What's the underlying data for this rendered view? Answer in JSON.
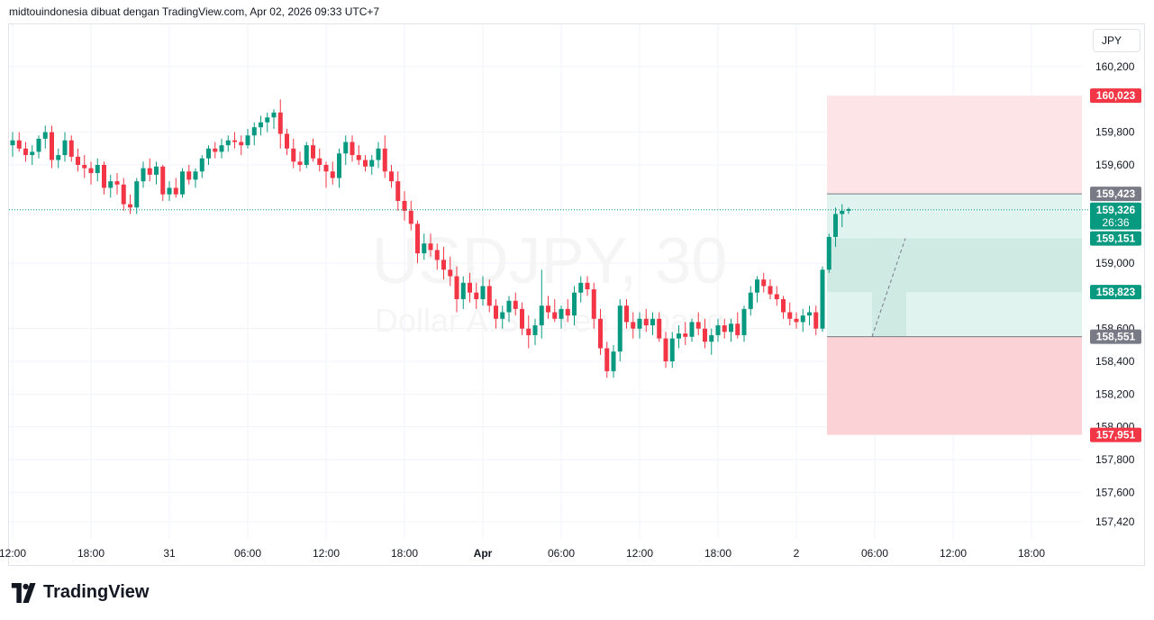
{
  "header": {
    "attribution": "midtouindonesia dibuat dengan TradingView.com, Apr 02, 2026 09:33 UTC+7"
  },
  "currency_button": "JPY",
  "watermark": {
    "symbol": "USDJPY, 30",
    "description": "Dollar A.S. / Yen Jepang"
  },
  "branding": {
    "name": "TradingView",
    "icon": "tradingview-logo-icon"
  },
  "colors": {
    "up": "#089981",
    "down": "#f23645",
    "target_zone": "#e0f3ef",
    "target_zone_dark": "#cfeae3",
    "stop_zone": "#fde4e6",
    "stop_zone_dark": "#fbd3d6",
    "grid": "#f0f3fa"
  },
  "chart_data": {
    "type": "candlestick",
    "title": "",
    "ylim": [
      157.35,
      160.4
    ],
    "y_ticks": [
      {
        "value": 160.2,
        "label": "160,200"
      },
      {
        "value": 159.8,
        "label": "159,800"
      },
      {
        "value": 159.6,
        "label": "159,600"
      },
      {
        "value": 159.0,
        "label": "159,000"
      },
      {
        "value": 158.6,
        "label": "158,600"
      },
      {
        "value": 158.4,
        "label": "158,400"
      },
      {
        "value": 158.2,
        "label": "158,200"
      },
      {
        "value": 158.0,
        "label": "158,000"
      },
      {
        "value": 157.8,
        "label": "157,800"
      },
      {
        "value": 157.6,
        "label": "157,600"
      },
      {
        "value": 157.42,
        "label": "157,420"
      }
    ],
    "x_ticks": [
      {
        "index": 0,
        "label": "12:00"
      },
      {
        "index": 12,
        "label": "18:00"
      },
      {
        "index": 24,
        "label": "31"
      },
      {
        "index": 36,
        "label": "06:00"
      },
      {
        "index": 48,
        "label": "12:00"
      },
      {
        "index": 60,
        "label": "18:00"
      },
      {
        "index": 72,
        "label": "Apr"
      },
      {
        "index": 84,
        "label": "06:00"
      },
      {
        "index": 96,
        "label": "12:00"
      },
      {
        "index": 108,
        "label": "18:00"
      },
      {
        "index": 120,
        "label": "2"
      },
      {
        "index": 132,
        "label": "06:00"
      },
      {
        "index": 144,
        "label": "12:00"
      },
      {
        "index": 156,
        "label": "18:00"
      }
    ],
    "candles": [
      [
        159.72,
        159.8,
        159.65,
        159.75
      ],
      [
        159.75,
        159.8,
        159.68,
        159.7
      ],
      [
        159.7,
        159.74,
        159.62,
        159.66
      ],
      [
        159.66,
        159.72,
        159.6,
        159.68
      ],
      [
        159.68,
        159.78,
        159.64,
        159.76
      ],
      [
        159.76,
        159.84,
        159.7,
        159.8
      ],
      [
        159.8,
        159.84,
        159.58,
        159.63
      ],
      [
        159.63,
        159.7,
        159.58,
        159.66
      ],
      [
        159.66,
        159.8,
        159.62,
        159.75
      ],
      [
        159.75,
        159.78,
        159.62,
        159.65
      ],
      [
        159.65,
        159.7,
        159.56,
        159.6
      ],
      [
        159.6,
        159.66,
        159.52,
        159.58
      ],
      [
        159.58,
        159.62,
        159.48,
        159.55
      ],
      [
        159.55,
        159.64,
        159.5,
        159.6
      ],
      [
        159.6,
        159.62,
        159.42,
        159.46
      ],
      [
        159.46,
        159.54,
        159.4,
        159.5
      ],
      [
        159.5,
        159.55,
        159.42,
        159.48
      ],
      [
        159.48,
        159.52,
        159.32,
        159.36
      ],
      [
        159.36,
        159.42,
        159.3,
        159.34
      ],
      [
        159.34,
        159.52,
        159.3,
        159.5
      ],
      [
        159.5,
        159.62,
        159.46,
        159.58
      ],
      [
        159.58,
        159.64,
        159.5,
        159.54
      ],
      [
        159.54,
        159.62,
        159.48,
        159.59
      ],
      [
        159.59,
        159.6,
        159.38,
        159.42
      ],
      [
        159.42,
        159.5,
        159.38,
        159.46
      ],
      [
        159.46,
        159.52,
        159.4,
        159.42
      ],
      [
        159.42,
        159.58,
        159.4,
        159.56
      ],
      [
        159.56,
        159.6,
        159.48,
        159.51
      ],
      [
        159.51,
        159.58,
        159.46,
        159.56
      ],
      [
        159.56,
        159.66,
        159.52,
        159.64
      ],
      [
        159.64,
        159.72,
        159.6,
        159.7
      ],
      [
        159.7,
        159.74,
        159.64,
        159.68
      ],
      [
        159.68,
        159.76,
        159.64,
        159.72
      ],
      [
        159.72,
        159.78,
        159.68,
        159.75
      ],
      [
        159.75,
        159.8,
        159.7,
        159.74
      ],
      [
        159.74,
        159.78,
        159.66,
        159.72
      ],
      [
        159.72,
        159.82,
        159.7,
        159.78
      ],
      [
        159.78,
        159.86,
        159.72,
        159.83
      ],
      [
        159.83,
        159.9,
        159.78,
        159.86
      ],
      [
        159.86,
        159.92,
        159.8,
        159.89
      ],
      [
        159.89,
        159.94,
        159.82,
        159.92
      ],
      [
        159.92,
        160.0,
        159.7,
        159.79
      ],
      [
        159.79,
        159.82,
        159.66,
        159.7
      ],
      [
        159.7,
        159.76,
        159.58,
        159.62
      ],
      [
        159.62,
        159.68,
        159.56,
        159.6
      ],
      [
        159.6,
        159.74,
        159.58,
        159.72
      ],
      [
        159.72,
        159.76,
        159.62,
        159.64
      ],
      [
        159.64,
        159.7,
        159.56,
        159.6
      ],
      [
        159.6,
        159.62,
        159.46,
        159.56
      ],
      [
        159.56,
        159.62,
        159.48,
        159.52
      ],
      [
        159.52,
        159.7,
        159.46,
        159.67
      ],
      [
        159.67,
        159.78,
        159.6,
        159.74
      ],
      [
        159.74,
        159.78,
        159.62,
        159.66
      ],
      [
        159.66,
        159.72,
        159.6,
        159.63
      ],
      [
        159.63,
        159.66,
        159.56,
        159.59
      ],
      [
        159.59,
        159.66,
        159.54,
        159.63
      ],
      [
        159.63,
        159.74,
        159.58,
        159.7
      ],
      [
        159.7,
        159.78,
        159.52,
        159.56
      ],
      [
        159.56,
        159.6,
        159.46,
        159.5
      ],
      [
        159.5,
        159.56,
        159.32,
        159.38
      ],
      [
        159.38,
        159.44,
        159.26,
        159.32
      ],
      [
        159.32,
        159.38,
        159.2,
        159.24
      ],
      [
        159.24,
        159.26,
        159.0,
        159.06
      ],
      [
        159.06,
        159.18,
        159.02,
        159.12
      ],
      [
        159.12,
        159.18,
        159.04,
        159.08
      ],
      [
        159.08,
        159.12,
        158.96,
        159.02
      ],
      [
        159.02,
        159.1,
        158.9,
        158.96
      ],
      [
        158.96,
        159.04,
        158.86,
        158.92
      ],
      [
        158.92,
        158.98,
        158.7,
        158.78
      ],
      [
        158.78,
        158.92,
        158.72,
        158.88
      ],
      [
        158.88,
        158.94,
        158.76,
        158.82
      ],
      [
        158.82,
        158.88,
        158.72,
        158.78
      ],
      [
        158.78,
        158.92,
        158.74,
        158.86
      ],
      [
        158.86,
        158.9,
        158.7,
        158.74
      ],
      [
        158.74,
        158.78,
        158.6,
        158.66
      ],
      [
        158.66,
        158.74,
        158.6,
        158.7
      ],
      [
        158.7,
        158.8,
        158.64,
        158.77
      ],
      [
        158.77,
        158.82,
        158.68,
        158.72
      ],
      [
        158.72,
        158.76,
        158.56,
        158.6
      ],
      [
        158.6,
        158.68,
        158.48,
        158.56
      ],
      [
        158.56,
        158.66,
        158.5,
        158.62
      ],
      [
        158.62,
        158.96,
        158.54,
        158.74
      ],
      [
        158.74,
        158.8,
        158.66,
        158.7
      ],
      [
        158.7,
        158.78,
        158.64,
        158.66
      ],
      [
        158.66,
        158.74,
        158.6,
        158.72
      ],
      [
        158.72,
        158.78,
        158.64,
        158.68
      ],
      [
        158.68,
        158.86,
        158.62,
        158.82
      ],
      [
        158.82,
        158.92,
        158.76,
        158.88
      ],
      [
        158.88,
        158.92,
        158.8,
        158.84
      ],
      [
        158.84,
        158.88,
        158.6,
        158.66
      ],
      [
        158.66,
        158.72,
        158.44,
        158.48
      ],
      [
        158.48,
        158.52,
        158.3,
        158.34
      ],
      [
        158.34,
        158.5,
        158.3,
        158.46
      ],
      [
        158.46,
        158.78,
        158.4,
        158.74
      ],
      [
        158.74,
        158.78,
        158.6,
        158.64
      ],
      [
        158.64,
        158.7,
        158.54,
        158.6
      ],
      [
        158.6,
        158.7,
        158.54,
        158.66
      ],
      [
        158.66,
        158.72,
        158.58,
        158.62
      ],
      [
        158.62,
        158.7,
        158.56,
        158.66
      ],
      [
        158.66,
        158.7,
        158.52,
        158.54
      ],
      [
        158.54,
        158.58,
        158.36,
        158.4
      ],
      [
        158.4,
        158.58,
        158.36,
        158.54
      ],
      [
        158.54,
        158.62,
        158.48,
        158.57
      ],
      [
        158.57,
        158.64,
        158.5,
        158.55
      ],
      [
        158.55,
        158.66,
        158.52,
        158.64
      ],
      [
        158.64,
        158.7,
        158.56,
        158.6
      ],
      [
        158.6,
        158.66,
        158.48,
        158.52
      ],
      [
        158.52,
        158.6,
        158.44,
        158.56
      ],
      [
        158.56,
        158.66,
        158.52,
        158.62
      ],
      [
        158.62,
        158.66,
        158.54,
        158.58
      ],
      [
        158.58,
        158.66,
        158.52,
        158.63
      ],
      [
        158.63,
        158.7,
        158.54,
        158.56
      ],
      [
        158.56,
        158.74,
        158.52,
        158.72
      ],
      [
        158.72,
        158.86,
        158.68,
        158.82
      ],
      [
        158.82,
        158.92,
        158.76,
        158.9
      ],
      [
        158.9,
        158.94,
        158.82,
        158.86
      ],
      [
        158.86,
        158.9,
        158.78,
        158.81
      ],
      [
        158.81,
        158.86,
        158.74,
        158.78
      ],
      [
        158.78,
        158.8,
        158.66,
        158.7
      ],
      [
        158.7,
        158.76,
        158.62,
        158.66
      ],
      [
        158.66,
        158.7,
        158.6,
        158.64
      ],
      [
        158.64,
        158.72,
        158.58,
        158.68
      ],
      [
        158.68,
        158.74,
        158.62,
        158.7
      ],
      [
        158.7,
        158.74,
        158.56,
        158.6
      ],
      [
        158.6,
        158.98,
        158.58,
        158.96
      ],
      [
        158.96,
        159.18,
        158.94,
        159.16
      ],
      [
        159.16,
        159.34,
        159.1,
        159.3
      ],
      [
        159.3,
        159.36,
        159.22,
        159.32
      ],
      [
        159.32,
        159.34,
        159.3,
        159.33
      ]
    ],
    "last_price": {
      "value": 159.326,
      "label": "159,326",
      "countdown": "26:36"
    },
    "position_tool": {
      "type": "long",
      "target_price": {
        "value": 160.023,
        "label": "160,023"
      },
      "entry_upper": {
        "value": 159.423,
        "label": "159,423"
      },
      "entry_lower": {
        "value": 158.551,
        "label": "158,551"
      },
      "stop_price": {
        "value": 157.951,
        "label": "157,951"
      },
      "inner_upper": {
        "value": 159.151,
        "label": "159,151"
      },
      "inner_lower": {
        "value": 158.823,
        "label": "158,823"
      }
    }
  }
}
